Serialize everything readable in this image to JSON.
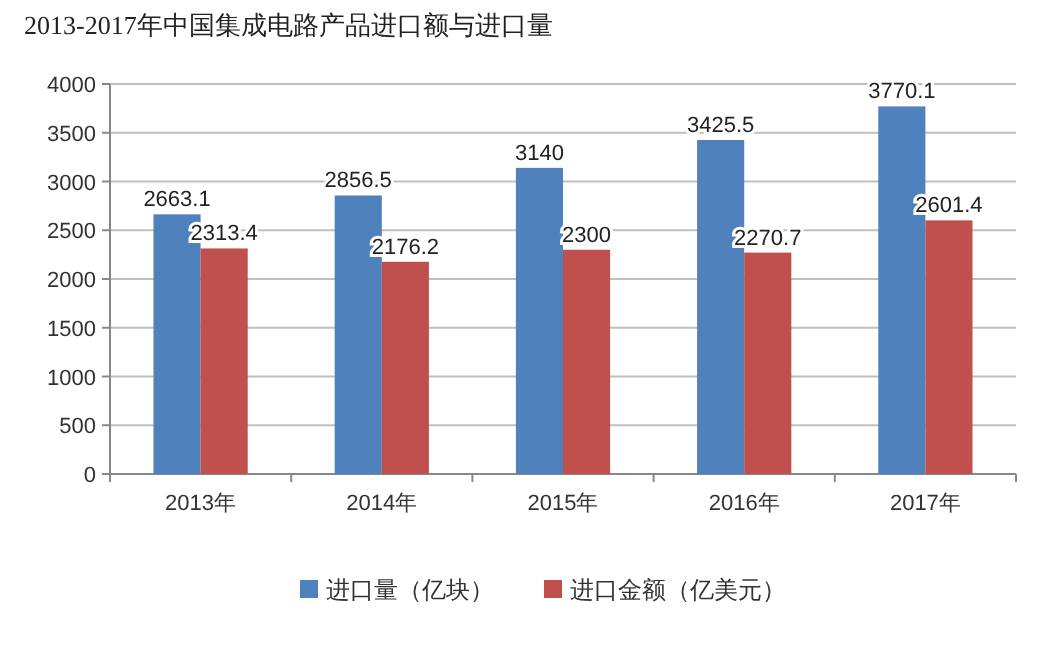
{
  "chart_data": {
    "type": "bar",
    "title": "2013-2017年中国集成电路产品进口额与进口量",
    "categories": [
      "2013年",
      "2014年",
      "2015年",
      "2016年",
      "2017年"
    ],
    "series": [
      {
        "name": "进口量（亿块）",
        "color": "#4f81bd",
        "values": [
          2663.1,
          2856.5,
          3140,
          3425.5,
          3770.1
        ]
      },
      {
        "name": "进口金额（亿美元）",
        "color": "#c0504d",
        "values": [
          2313.4,
          2176.2,
          2300,
          2270.7,
          2601.4
        ]
      }
    ],
    "ylim": [
      0,
      4000
    ],
    "yticks": [
      0,
      500,
      1000,
      1500,
      2000,
      2500,
      3000,
      3500,
      4000
    ],
    "grid": "y",
    "legend": "bottom",
    "data_labels": true
  }
}
